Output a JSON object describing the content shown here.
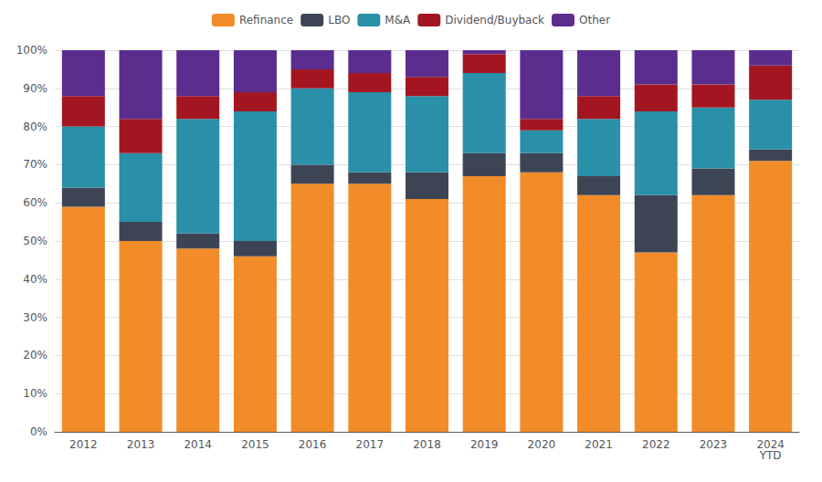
{
  "chart_data": {
    "type": "bar",
    "stacked": true,
    "orientation": "vertical",
    "categories": [
      "2012",
      "2013",
      "2014",
      "2015",
      "2016",
      "2017",
      "2018",
      "2019",
      "2020",
      "2021",
      "2022",
      "2023",
      "2024\nYTD"
    ],
    "series": [
      {
        "name": "Refinance",
        "color": "#F28C28",
        "values": [
          59,
          50,
          48,
          46,
          65,
          65,
          61,
          67,
          68,
          62,
          47,
          62,
          71
        ]
      },
      {
        "name": "LBO",
        "color": "#3D4555",
        "values": [
          5,
          5,
          4,
          4,
          5,
          3,
          7,
          6,
          5,
          5,
          15,
          7,
          3
        ]
      },
      {
        "name": "M&A",
        "color": "#2A8FA8",
        "values": [
          16,
          18,
          30,
          34,
          20,
          21,
          20,
          21,
          6,
          15,
          22,
          16,
          13
        ]
      },
      {
        "name": "Dividend/Buyback",
        "color": "#A31621",
        "values": [
          8,
          9,
          6,
          5,
          5,
          5,
          5,
          5,
          3,
          6,
          7,
          6,
          9
        ]
      },
      {
        "name": "Other",
        "color": "#5B2D8E",
        "values": [
          12,
          18,
          12,
          11,
          5,
          6,
          7,
          1,
          18,
          12,
          9,
          9,
          4
        ]
      }
    ],
    "ylim": [
      0,
      100
    ],
    "yticks": [
      {
        "value": 0,
        "label": "0%"
      },
      {
        "value": 10,
        "label": "10%"
      },
      {
        "value": 20,
        "label": "20%"
      },
      {
        "value": 30,
        "label": "30%"
      },
      {
        "value": 40,
        "label": "40%"
      },
      {
        "value": 50,
        "label": "50%"
      },
      {
        "value": 60,
        "label": "60%"
      },
      {
        "value": 70,
        "label": "70%"
      },
      {
        "value": 80,
        "label": "80%"
      },
      {
        "value": 90,
        "label": "90%"
      },
      {
        "value": 100,
        "label": "100%"
      }
    ],
    "grid": true,
    "legend": "top"
  }
}
